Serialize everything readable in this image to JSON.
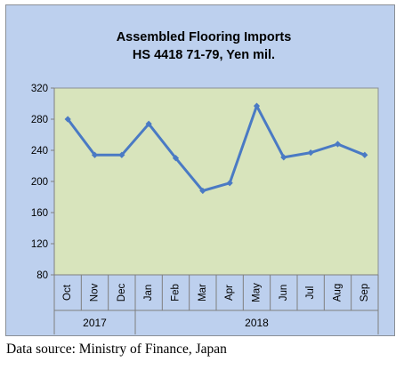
{
  "chart_data": {
    "type": "line",
    "title": "Assembled Flooring Imports",
    "subtitle": "HS 4418 71-79, Yen mil.",
    "categories": [
      "Oct",
      "Nov",
      "Dec",
      "Jan",
      "Feb",
      "Mar",
      "Apr",
      "May",
      "Jun",
      "Jul",
      "Aug",
      "Sep"
    ],
    "year_groups": [
      {
        "label": "2017",
        "span": [
          0,
          2
        ]
      },
      {
        "label": "2018",
        "span": [
          3,
          11
        ]
      }
    ],
    "series": [
      {
        "values": [
          280,
          234,
          234,
          274,
          230,
          188,
          198,
          297,
          231,
          237,
          248,
          234
        ]
      }
    ],
    "ylim": [
      80,
      320
    ],
    "yticks": [
      80,
      120,
      160,
      200,
      240,
      280,
      320
    ],
    "grid": false,
    "legend": "none",
    "colors": {
      "line": "#4a7ac4",
      "plot_bg": "#d8e4bc",
      "frame_bg": "#bdd0ee"
    }
  },
  "source_note": "Data source: Ministry of Finance, Japan"
}
